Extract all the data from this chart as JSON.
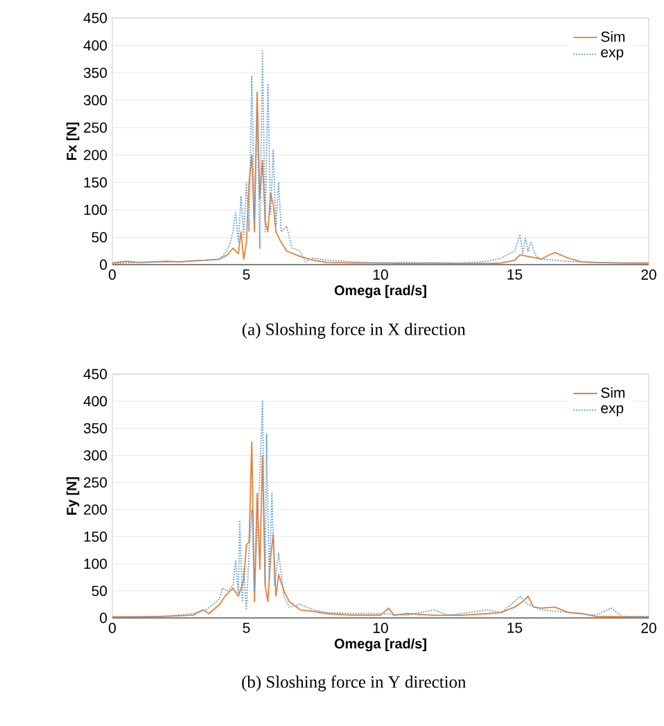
{
  "chart_data": [
    {
      "type": "line",
      "title": "(a) Sloshing force in X direction",
      "xlabel": "Omega [rad/s]",
      "ylabel": "Fx [N]",
      "xlim": [
        0,
        20
      ],
      "ylim": [
        0,
        450
      ],
      "xticks": [
        0,
        5,
        10,
        15,
        20
      ],
      "yticks": [
        0,
        50,
        100,
        150,
        200,
        250,
        300,
        350,
        400,
        450
      ],
      "grid": "y",
      "legend": "top right",
      "series": [
        {
          "name": "Sim",
          "color": "#ed7d31",
          "line_style": "solid",
          "x": [
            0,
            0.5,
            1,
            1.5,
            2,
            2.5,
            3,
            3.5,
            4,
            4.3,
            4.5,
            4.7,
            4.8,
            4.9,
            5.0,
            5.1,
            5.2,
            5.3,
            5.4,
            5.5,
            5.6,
            5.7,
            5.8,
            5.9,
            6.0,
            6.1,
            6.3,
            6.5,
            7,
            7.5,
            8,
            9,
            10,
            11,
            12,
            13,
            14,
            14.5,
            15,
            15.2,
            15.5,
            16,
            16.3,
            16.5,
            17,
            17.5,
            18,
            19,
            20
          ],
          "values": [
            3,
            6,
            4,
            5,
            6,
            5,
            7,
            8,
            10,
            18,
            30,
            20,
            60,
            10,
            40,
            150,
            200,
            60,
            315,
            120,
            190,
            80,
            60,
            130,
            110,
            60,
            40,
            25,
            15,
            8,
            4,
            3,
            3,
            2,
            3,
            2,
            2,
            3,
            8,
            18,
            15,
            10,
            18,
            22,
            12,
            5,
            4,
            3,
            3
          ]
        },
        {
          "name": "exp",
          "color": "#5b9bd5",
          "line_style": "dotted",
          "x": [
            0,
            1,
            2,
            3,
            4,
            4.2,
            4.4,
            4.5,
            4.6,
            4.7,
            4.8,
            4.9,
            5.0,
            5.1,
            5.2,
            5.3,
            5.4,
            5.5,
            5.6,
            5.7,
            5.8,
            5.9,
            6.0,
            6.1,
            6.2,
            6.3,
            6.5,
            6.7,
            7,
            7.2,
            7.5,
            8,
            9,
            10,
            11,
            12,
            13,
            14,
            14.5,
            15,
            15.2,
            15.3,
            15.4,
            15.5,
            15.6,
            15.8,
            16,
            17,
            18,
            19,
            20
          ],
          "values": [
            2,
            4,
            5,
            6,
            10,
            20,
            40,
            60,
            95,
            40,
            125,
            50,
            150,
            60,
            345,
            80,
            280,
            30,
            390,
            60,
            330,
            90,
            210,
            70,
            150,
            60,
            70,
            30,
            25,
            5,
            12,
            8,
            5,
            3,
            4,
            3,
            3,
            6,
            12,
            25,
            55,
            20,
            48,
            25,
            42,
            15,
            10,
            6,
            4,
            3,
            2
          ]
        }
      ]
    },
    {
      "type": "line",
      "title": "(b) Sloshing force in Y direction",
      "xlabel": "Omega [rad/s]",
      "ylabel": "Fy [N]",
      "xlim": [
        0,
        20
      ],
      "ylim": [
        0,
        450
      ],
      "xticks": [
        0,
        5,
        10,
        15,
        20
      ],
      "yticks": [
        0,
        50,
        100,
        150,
        200,
        250,
        300,
        350,
        400,
        450
      ],
      "grid": "y",
      "legend": "top right",
      "series": [
        {
          "name": "Sim",
          "color": "#ed7d31",
          "line_style": "solid",
          "x": [
            0,
            1,
            2,
            3,
            3.4,
            3.6,
            4,
            4.2,
            4.5,
            4.7,
            4.9,
            5.0,
            5.1,
            5.2,
            5.3,
            5.4,
            5.5,
            5.6,
            5.7,
            5.8,
            5.9,
            6.0,
            6.1,
            6.2,
            6.4,
            6.6,
            7,
            7.5,
            8,
            9,
            10,
            10.3,
            10.5,
            11,
            12,
            13,
            14,
            14.5,
            15,
            15.3,
            15.5,
            15.7,
            16,
            16.5,
            17,
            17.5,
            18,
            19,
            20
          ],
          "values": [
            2,
            2,
            3,
            5,
            15,
            8,
            25,
            40,
            55,
            40,
            70,
            135,
            140,
            325,
            30,
            230,
            90,
            300,
            60,
            30,
            110,
            155,
            40,
            80,
            50,
            30,
            15,
            12,
            8,
            5,
            5,
            18,
            5,
            8,
            5,
            5,
            8,
            10,
            20,
            30,
            40,
            20,
            18,
            20,
            10,
            8,
            3,
            2,
            2
          ]
        },
        {
          "name": "exp",
          "color": "#5b9bd5",
          "line_style": "dotted",
          "x": [
            0,
            1,
            2,
            3,
            3.5,
            4,
            4.1,
            4.3,
            4.5,
            4.6,
            4.7,
            4.75,
            4.85,
            4.9,
            5.0,
            5.1,
            5.2,
            5.3,
            5.5,
            5.6,
            5.7,
            5.75,
            5.85,
            5.95,
            6.05,
            6.2,
            6.4,
            6.6,
            7,
            7.5,
            8,
            9,
            10,
            11,
            12,
            12.5,
            13,
            14,
            14.5,
            15,
            15.2,
            15.5,
            16,
            17,
            18,
            18.6,
            19,
            20
          ],
          "values": [
            1,
            2,
            3,
            8,
            15,
            35,
            55,
            50,
            60,
            105,
            45,
            180,
            30,
            90,
            15,
            120,
            200,
            50,
            260,
            400,
            60,
            340,
            70,
            230,
            60,
            120,
            40,
            20,
            25,
            15,
            10,
            8,
            8,
            5,
            15,
            5,
            8,
            15,
            10,
            30,
            40,
            25,
            15,
            10,
            5,
            18,
            3,
            2
          ]
        }
      ]
    }
  ]
}
